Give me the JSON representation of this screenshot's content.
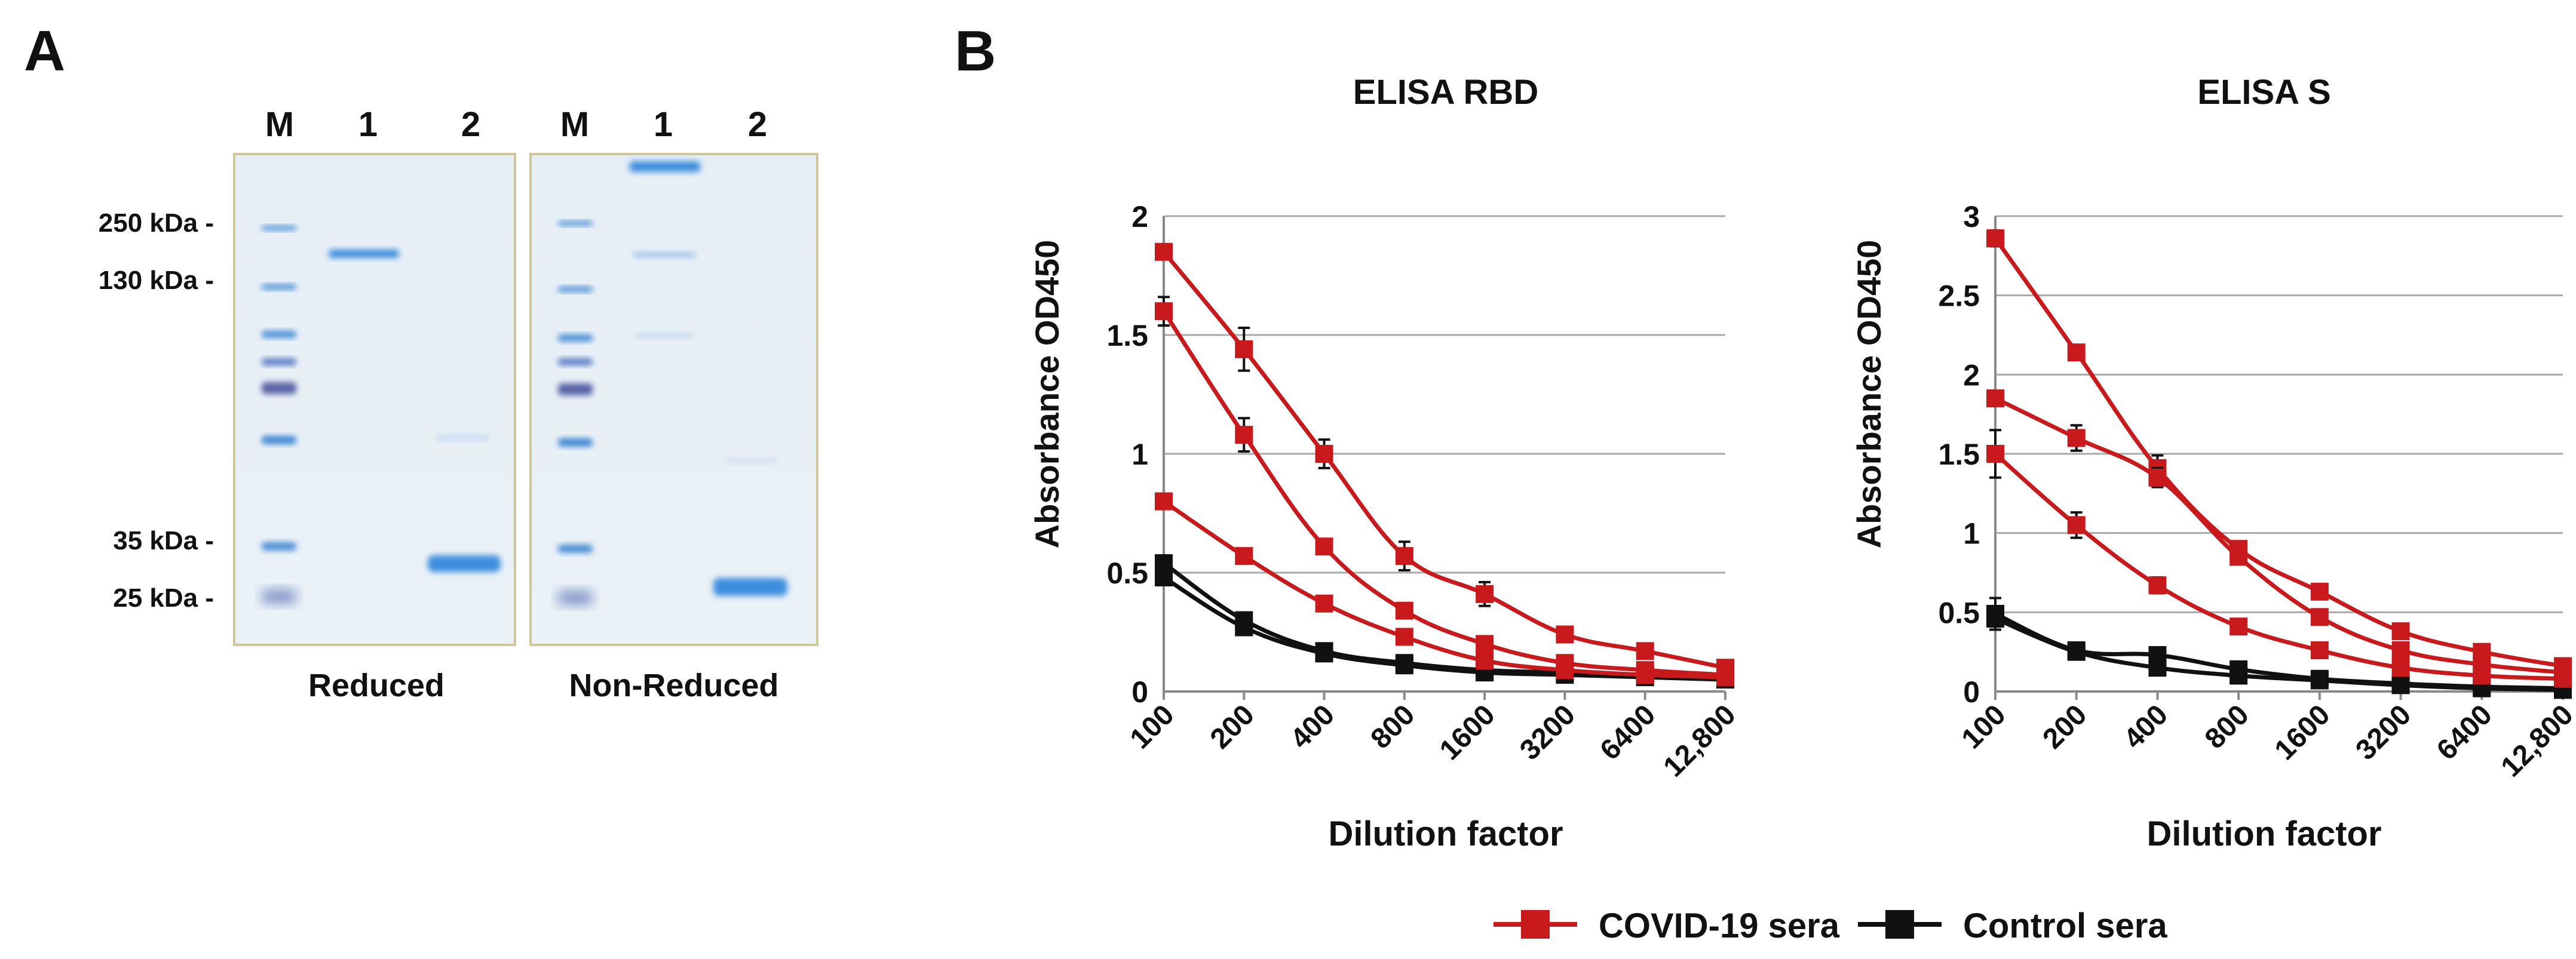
{
  "panel_a": {
    "label": "A",
    "gel_reduced": {
      "lanes": [
        "M",
        "1",
        "2"
      ],
      "caption": "Reduced"
    },
    "gel_nonreduced": {
      "lanes": [
        "M",
        "1",
        "2"
      ],
      "caption": "Non-Reduced"
    },
    "markers": [
      "250 kDa -",
      "130 kDa -",
      "35 kDa -",
      "25 kDa -"
    ],
    "colors": {
      "gel_bg": "#e9f0f6",
      "band": "#3c8ede",
      "marker_dark": "#5a64a6"
    }
  },
  "panel_b": {
    "label": "B"
  },
  "legend": {
    "covid": "COVID-19 sera",
    "control": "Control sera"
  },
  "colors": {
    "covid": "#c8191d",
    "control": "#111111",
    "grid": "#a9a9a9"
  },
  "chart_data": [
    {
      "type": "line",
      "title": "ELISA RBD",
      "xlabel": "Dilution factor",
      "ylabel": "Absorbance OD450",
      "categories": [
        "100",
        "200",
        "400",
        "800",
        "1600",
        "3200",
        "6400",
        "12,800"
      ],
      "ylim": [
        0,
        2
      ],
      "yticks": [
        "0",
        "0.5",
        "1",
        "1.5",
        "2"
      ],
      "grid": true,
      "series": [
        {
          "name": "COVID-19 sera",
          "group": "covid",
          "values": [
            1.85,
            1.44,
            1.0,
            0.57,
            0.41,
            0.24,
            0.17,
            0.1
          ],
          "errors": [
            0.02,
            0.09,
            0.06,
            0.06,
            0.05,
            0.02,
            0.02,
            0.01
          ]
        },
        {
          "name": "COVID-19 sera",
          "group": "covid",
          "values": [
            1.6,
            1.08,
            0.61,
            0.34,
            0.2,
            0.12,
            0.09,
            0.07
          ],
          "errors": [
            0.06,
            0.07,
            0.02,
            0.02,
            0.02,
            0.02,
            0.01,
            0.01
          ]
        },
        {
          "name": "COVID-19 sera",
          "group": "covid",
          "values": [
            0.8,
            0.57,
            0.37,
            0.23,
            0.13,
            0.09,
            0.07,
            0.06
          ],
          "errors": [
            0.02,
            0.02,
            0.02,
            0.02,
            0.02,
            0.01,
            0.01,
            0.01
          ]
        },
        {
          "name": "Control sera",
          "group": "control",
          "values": [
            0.54,
            0.3,
            0.17,
            0.12,
            0.09,
            0.08,
            0.07,
            0.06
          ],
          "errors": [
            0.03,
            0.02,
            0.02,
            0.02,
            0.01,
            0.01,
            0.01,
            0.01
          ]
        },
        {
          "name": "Control sera",
          "group": "control",
          "values": [
            0.48,
            0.27,
            0.16,
            0.11,
            0.08,
            0.07,
            0.06,
            0.05
          ],
          "errors": [
            0.03,
            0.02,
            0.02,
            0.02,
            0.01,
            0.01,
            0.01,
            0.01
          ]
        }
      ]
    },
    {
      "type": "line",
      "title": "ELISA S",
      "xlabel": "Dilution factor",
      "ylabel": "Absorbance OD450",
      "categories": [
        "100",
        "200",
        "400",
        "800",
        "1600",
        "3200",
        "6400",
        "12,800"
      ],
      "ylim": [
        0,
        3
      ],
      "yticks": [
        "0",
        "0.5",
        "1",
        "1.5",
        "2",
        "2.5",
        "3"
      ],
      "grid": true,
      "series": [
        {
          "name": "COVID-19 sera",
          "group": "covid",
          "values": [
            2.86,
            2.14,
            1.41,
            0.9,
            0.63,
            0.38,
            0.25,
            0.16
          ],
          "errors": [
            0.05,
            0.03,
            0.08,
            0.04,
            0.03,
            0.03,
            0.02,
            0.02
          ]
        },
        {
          "name": "COVID-19 sera",
          "group": "covid",
          "values": [
            1.85,
            1.6,
            1.35,
            0.85,
            0.47,
            0.26,
            0.17,
            0.12
          ],
          "errors": [
            0.03,
            0.08,
            0.06,
            0.04,
            0.03,
            0.02,
            0.02,
            0.02
          ]
        },
        {
          "name": "COVID-19 sera",
          "group": "covid",
          "values": [
            1.5,
            1.05,
            0.67,
            0.41,
            0.26,
            0.15,
            0.1,
            0.08
          ],
          "errors": [
            0.15,
            0.08,
            0.05,
            0.04,
            0.03,
            0.02,
            0.02,
            0.01
          ]
        },
        {
          "name": "Control sera",
          "group": "control",
          "values": [
            0.49,
            0.26,
            0.23,
            0.14,
            0.08,
            0.05,
            0.03,
            0.02
          ],
          "errors": [
            0.1,
            0.04,
            0.04,
            0.03,
            0.02,
            0.02,
            0.01,
            0.01
          ]
        },
        {
          "name": "Control sera",
          "group": "control",
          "values": [
            0.46,
            0.25,
            0.15,
            0.1,
            0.07,
            0.04,
            0.02,
            0.01
          ],
          "errors": [
            0.05,
            0.03,
            0.03,
            0.02,
            0.02,
            0.01,
            0.01,
            0.01
          ]
        }
      ]
    }
  ]
}
